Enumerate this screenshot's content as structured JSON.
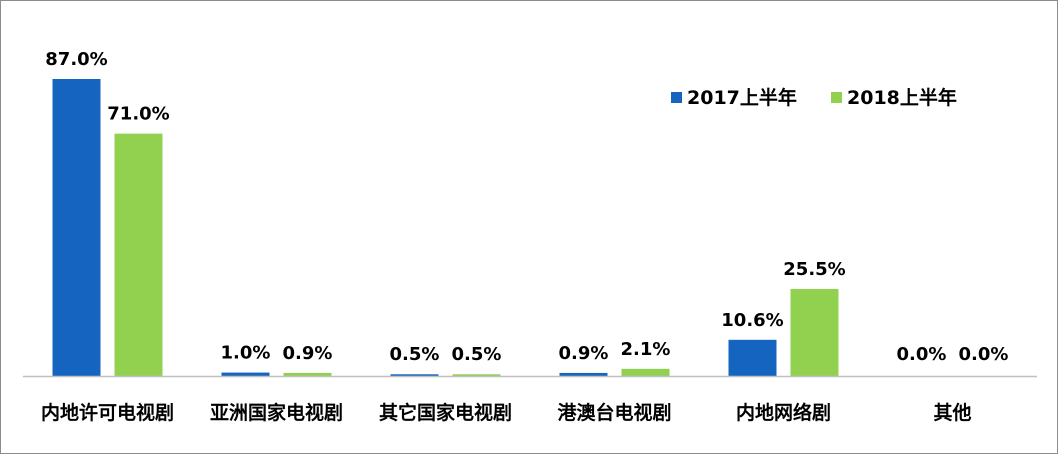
{
  "chart_data": {
    "type": "bar",
    "categories": [
      "内地许可电视剧",
      "亚洲国家电视剧",
      "其它国家电视剧",
      "港澳台电视剧",
      "内地网络剧",
      "其他"
    ],
    "series": [
      {
        "name": "2017上半年",
        "values": [
          87.0,
          1.0,
          0.5,
          0.9,
          10.6,
          0.0
        ],
        "labels": [
          "87.0%",
          "1.0%",
          "0.5%",
          "0.9%",
          "10.6%",
          "0.0%"
        ],
        "color": "#1565c0"
      },
      {
        "name": "2018上半年",
        "values": [
          71.0,
          0.9,
          0.5,
          2.1,
          25.5,
          0.0
        ],
        "labels": [
          "71.0%",
          "0.9%",
          "0.5%",
          "2.1%",
          "25.5%",
          "0.0%"
        ],
        "color": "#92d050"
      }
    ],
    "ylim": [
      0,
      87.0
    ],
    "grid": false,
    "legend_position": "top-right",
    "title": "",
    "xlabel": "",
    "ylabel": ""
  }
}
